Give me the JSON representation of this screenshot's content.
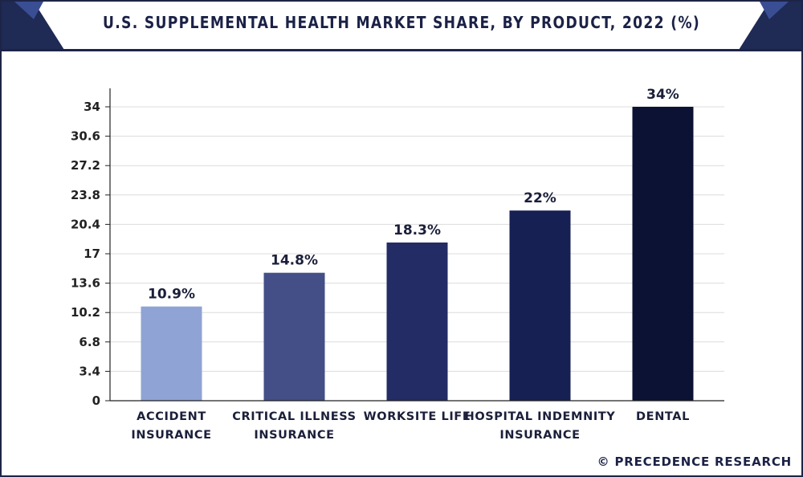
{
  "header": {
    "title": "U.S. SUPPLEMENTAL HEALTH MARKET SHARE, BY PRODUCT, 2022 (%)"
  },
  "footer": {
    "copyright": "© PRECEDENCE RESEARCH"
  },
  "colors": {
    "frame": "#1d2446",
    "corner_dark": "#1f2a55",
    "corner_light": "#3a4e94",
    "grid": "#dcdcdc",
    "axis": "#222222"
  },
  "chart_data": {
    "type": "bar",
    "title": "U.S. SUPPLEMENTAL HEALTH MARKET SHARE, BY PRODUCT, 2022 (%)",
    "categories": [
      [
        "ACCIDENT",
        "INSURANCE"
      ],
      [
        "CRITICAL ILLNESS",
        "INSURANCE"
      ],
      [
        "WORKSITE LIFE"
      ],
      [
        "HOSPITAL INDEMNITY",
        "INSURANCE"
      ],
      [
        "DENTAL"
      ]
    ],
    "values": [
      10.9,
      14.8,
      18.3,
      22,
      34
    ],
    "value_labels": [
      "10.9%",
      "14.8%",
      "18.3%",
      "22%",
      "34%"
    ],
    "bar_colors": [
      "#8fa3d4",
      "#434f86",
      "#232c65",
      "#172053",
      "#0b1233"
    ],
    "yticks": [
      "0",
      "3.4",
      "6.8",
      "10.2",
      "13.6",
      "17",
      "20.4",
      "23.8",
      "27.2",
      "30.6",
      "34"
    ],
    "ylim": [
      0,
      34
    ],
    "xlabel": "",
    "ylabel": "",
    "grid": true,
    "legend": "none"
  }
}
